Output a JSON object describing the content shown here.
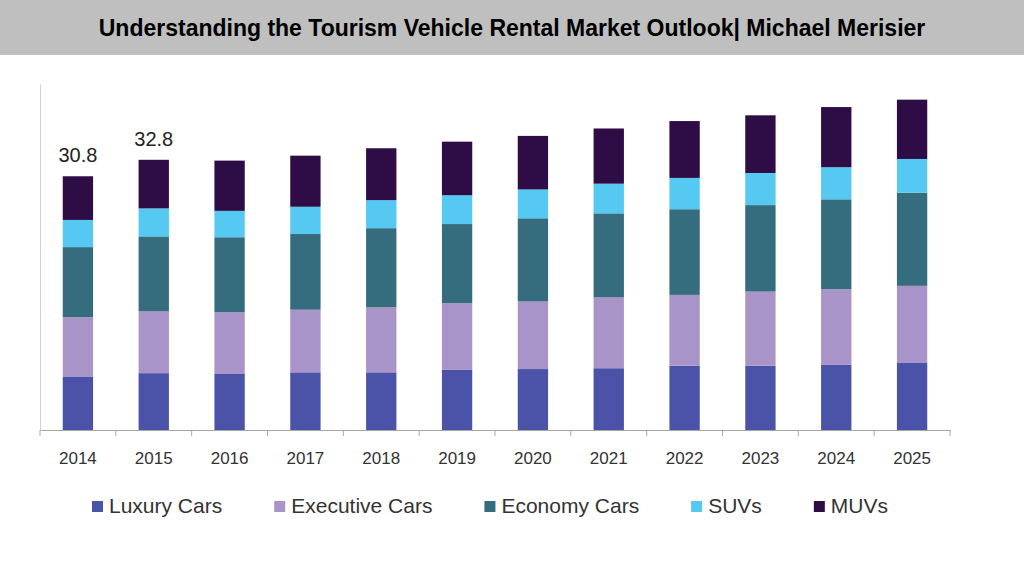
{
  "chart_data": {
    "type": "bar",
    "title": "Understanding the Tourism Vehicle Rental Market Outlook| Michael Merisier",
    "stacked": true,
    "legend": "bottom",
    "tick_labels": "x",
    "categories": [
      "2014",
      "2015",
      "2016",
      "2017",
      "2018",
      "2019",
      "2020",
      "2021",
      "2022",
      "2023",
      "2024",
      "2025"
    ],
    "series": [
      {
        "name": "Luxury Cars",
        "color": "#4b53a8",
        "values": [
          6.5,
          6.9,
          6.8,
          7.0,
          7.0,
          7.3,
          7.4,
          7.5,
          7.8,
          7.8,
          7.9,
          8.2
        ]
      },
      {
        "name": "Executive Cars",
        "color": "#a894c9",
        "values": [
          7.2,
          7.5,
          7.5,
          7.6,
          7.9,
          8.1,
          8.2,
          8.6,
          8.6,
          9.0,
          9.2,
          9.3
        ]
      },
      {
        "name": "Economy Cars",
        "color": "#356c7e",
        "values": [
          8.5,
          9.1,
          9.1,
          9.2,
          9.6,
          9.6,
          10.1,
          10.2,
          10.4,
          10.5,
          10.9,
          11.3
        ]
      },
      {
        "name": "SUVs",
        "color": "#55c9f2",
        "values": [
          3.3,
          3.4,
          3.2,
          3.3,
          3.4,
          3.5,
          3.5,
          3.6,
          3.8,
          3.9,
          3.9,
          4.1
        ]
      },
      {
        "name": "MUVs",
        "color": "#2e0d46",
        "values": [
          5.3,
          5.9,
          6.1,
          6.2,
          6.3,
          6.5,
          6.5,
          6.7,
          6.9,
          7.0,
          7.3,
          7.2
        ]
      }
    ],
    "ylim": [
      0,
      42
    ],
    "annotations": [
      {
        "text": "30.8",
        "x": "2014"
      },
      {
        "text": "32.8",
        "x": "2015"
      }
    ]
  }
}
